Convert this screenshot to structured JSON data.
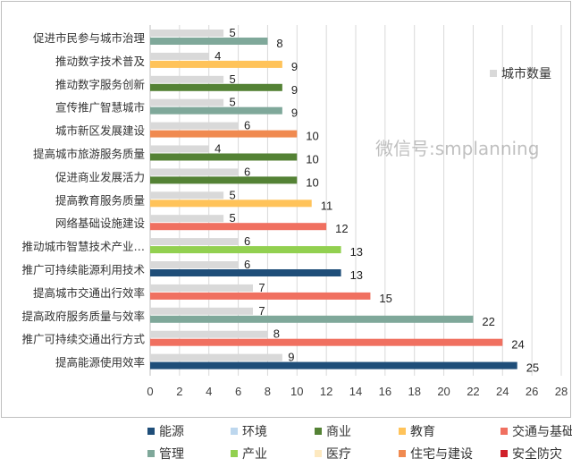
{
  "chart_data": {
    "type": "bar",
    "orientation": "horizontal",
    "title": "",
    "xlim": [
      0,
      28
    ],
    "xticks": [
      0,
      2,
      4,
      6,
      8,
      10,
      12,
      14,
      16,
      18,
      20,
      22,
      24,
      26,
      28
    ],
    "grid": true,
    "categories": [
      "促进市民参与城市治理",
      "推动数字技术普及",
      "推动数字服务创新",
      "宣传推广智慧城市",
      "城市新区发展建设",
      "提高城市旅游服务质量",
      "促进商业发展活力",
      "提高教育服务质量",
      "网络基础设施建设",
      "推动城市智慧技术产业…",
      "推广可持续能源利用技术",
      "提高城市交通出行效率",
      "提高政府服务质量与效率",
      "推广可持续交通出行方式",
      "提高能源使用效率"
    ],
    "series": [
      {
        "name": "城市数量",
        "color": "#d9d9d9",
        "values": [
          5,
          4,
          5,
          5,
          6,
          4,
          6,
          5,
          5,
          6,
          6,
          7,
          7,
          8,
          9
        ]
      },
      {
        "values": [
          8,
          9,
          9,
          9,
          10,
          10,
          10,
          11,
          12,
          13,
          13,
          15,
          22,
          24,
          25
        ],
        "fields": [
          "管理",
          "教育",
          "商业",
          "管理",
          "住宅与建设",
          "商业",
          "商业",
          "教育",
          "交通与基础设施",
          "产业",
          "能源",
          "交通与基础设施",
          "管理",
          "交通与基础设施",
          "能源"
        ]
      }
    ],
    "series_legend_position": "top-right",
    "field_legend": [
      {
        "name": "能源",
        "color": "#1f4e79"
      },
      {
        "name": "环境",
        "color": "#bdd7ee"
      },
      {
        "name": "商业",
        "color": "#548235"
      },
      {
        "name": "教育",
        "color": "#ffc35a"
      },
      {
        "name": "交通与基础设施",
        "color": "#f07060"
      },
      {
        "name": "管理",
        "color": "#7fa89a"
      },
      {
        "name": "产业",
        "color": "#92d050"
      },
      {
        "name": "医疗",
        "color": "#fde9c0"
      },
      {
        "name": "住宅与建设",
        "color": "#f08a50"
      },
      {
        "name": "安全防灾",
        "color": "#d0202a"
      }
    ],
    "legend_position": "bottom"
  },
  "watermark": "微信号:smplanning"
}
